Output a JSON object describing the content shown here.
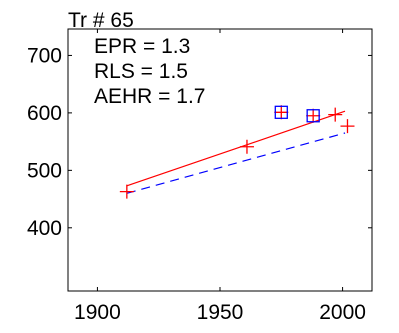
{
  "chart_data": {
    "type": "scatter",
    "title": "Tr # 65",
    "xlabel": "",
    "ylabel": "",
    "xlim": [
      1888,
      2012
    ],
    "ylim": [
      290,
      746
    ],
    "xticks": [
      1900,
      1950,
      2000
    ],
    "yticks": [
      400,
      500,
      600,
      700
    ],
    "xtick_labels": [
      "1900",
      "1950",
      "2000"
    ],
    "ytick_labels": [
      "400",
      "500",
      "600",
      "700"
    ],
    "grid": false,
    "annotations": [
      "EPR = 1.3",
      "RLS = 1.5",
      "AEHR = 1.7"
    ],
    "series": [
      {
        "marker": "plus",
        "color": "#ff0000",
        "points": [
          [
            1912,
            463
          ],
          [
            1961,
            541
          ],
          [
            1975,
            601
          ],
          [
            1988,
            595
          ],
          [
            1997,
            597
          ],
          [
            2002,
            577
          ]
        ]
      },
      {
        "marker": "square",
        "color": "#0000ff",
        "points": [
          [
            1975,
            601
          ],
          [
            1988,
            595
          ]
        ]
      }
    ],
    "lines": [
      {
        "style": "solid",
        "color": "#ff0000",
        "from": [
          1912,
          473
        ],
        "to": [
          2001,
          603
        ]
      },
      {
        "style": "dashed",
        "color": "#0000ff",
        "from": [
          1912,
          460
        ],
        "to": [
          2001,
          565
        ]
      }
    ]
  }
}
